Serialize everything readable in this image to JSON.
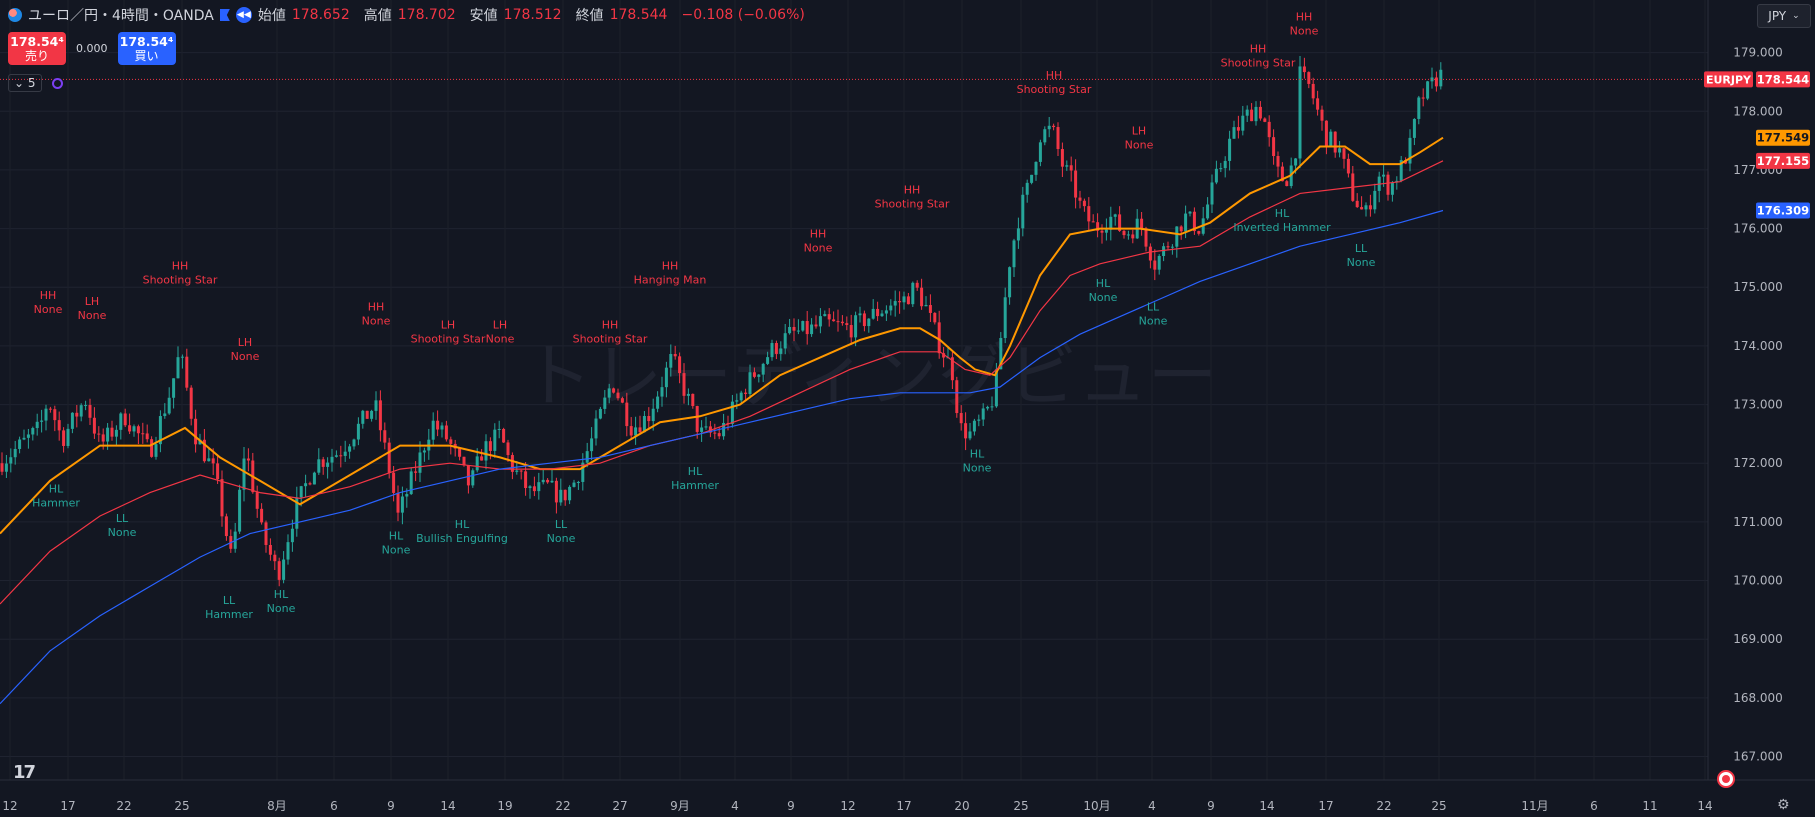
{
  "header": {
    "symbol_title": "ユーロ／円・4時間・OANDA",
    "open_label": "始値",
    "open": "178.652",
    "high_label": "高値",
    "high": "178.702",
    "low_label": "安値",
    "low": "178.512",
    "close_label": "終値",
    "close": "178.544",
    "change": "−0.108 (−0.06%)"
  },
  "trade": {
    "sell_price": "178.54⁴",
    "sell_label": "売り",
    "spread": "0.000",
    "buy_price": "178.54⁴",
    "buy_label": "買い"
  },
  "indicator_toggle": "5",
  "currency_selector": "JPY",
  "watermark": "トレーディングビュー",
  "colors": {
    "background": "#131722",
    "up": "#26a69a",
    "down": "#f23645",
    "ma_fast": "#ff9800",
    "ma_mid": "#f23645",
    "ma_slow": "#2962ff",
    "high_label": "#f23645",
    "low_label": "#26a69a"
  },
  "chart_data": {
    "type": "candlestick",
    "y_range": [
      166.6,
      179.3
    ],
    "y_ticks": [
      "179.000",
      "178.000",
      "177.000",
      "176.000",
      "175.000",
      "174.000",
      "173.000",
      "172.000",
      "171.000",
      "170.000",
      "169.000",
      "168.000",
      "167.000"
    ],
    "x_ticks": [
      "12",
      "17",
      "22",
      "25",
      "8月",
      "6",
      "9",
      "14",
      "19",
      "22",
      "27",
      "9月",
      "4",
      "9",
      "12",
      "17",
      "20",
      "25",
      "10月",
      "4",
      "9",
      "14",
      "17",
      "22",
      "25",
      "11月",
      "6",
      "11",
      "14"
    ],
    "price_anchors": [
      [
        0,
        172.0
      ],
      [
        40,
        172.6
      ],
      [
        48,
        173.1
      ],
      [
        62,
        172.4
      ],
      [
        85,
        173.1
      ],
      [
        100,
        172.3
      ],
      [
        125,
        172.8
      ],
      [
        150,
        172.2
      ],
      [
        170,
        173.2
      ],
      [
        180,
        173.9
      ],
      [
        195,
        172.5
      ],
      [
        215,
        171.8
      ],
      [
        232,
        170.3
      ],
      [
        245,
        172.3
      ],
      [
        262,
        170.8
      ],
      [
        278,
        170.1
      ],
      [
        295,
        171.2
      ],
      [
        315,
        172.0
      ],
      [
        340,
        172.2
      ],
      [
        375,
        173.0
      ],
      [
        388,
        172.0
      ],
      [
        398,
        171.1
      ],
      [
        418,
        172.0
      ],
      [
        432,
        172.7
      ],
      [
        448,
        172.4
      ],
      [
        470,
        171.6
      ],
      [
        482,
        172.2
      ],
      [
        500,
        172.5
      ],
      [
        510,
        172.0
      ],
      [
        530,
        171.5
      ],
      [
        548,
        171.6
      ],
      [
        562,
        171.4
      ],
      [
        575,
        171.7
      ],
      [
        592,
        172.4
      ],
      [
        612,
        173.4
      ],
      [
        632,
        172.6
      ],
      [
        648,
        172.8
      ],
      [
        672,
        173.8
      ],
      [
        690,
        173.0
      ],
      [
        700,
        172.5
      ],
      [
        720,
        172.5
      ],
      [
        745,
        173.3
      ],
      [
        770,
        173.9
      ],
      [
        790,
        174.2
      ],
      [
        815,
        174.3
      ],
      [
        820,
        174.4
      ],
      [
        850,
        174.3
      ],
      [
        880,
        174.6
      ],
      [
        905,
        174.8
      ],
      [
        915,
        175.0
      ],
      [
        925,
        174.7
      ],
      [
        940,
        174.0
      ],
      [
        952,
        173.6
      ],
      [
        960,
        172.6
      ],
      [
        970,
        172.5
      ],
      [
        985,
        172.8
      ],
      [
        995,
        173.2
      ],
      [
        1003,
        174.5
      ],
      [
        1010,
        175.5
      ],
      [
        1020,
        176.3
      ],
      [
        1030,
        176.8
      ],
      [
        1040,
        177.6
      ],
      [
        1052,
        177.7
      ],
      [
        1062,
        177.1
      ],
      [
        1072,
        176.8
      ],
      [
        1082,
        176.3
      ],
      [
        1095,
        176.0
      ],
      [
        1110,
        176.2
      ],
      [
        1125,
        175.9
      ],
      [
        1140,
        176.1
      ],
      [
        1155,
        175.4
      ],
      [
        1170,
        175.8
      ],
      [
        1185,
        176.2
      ],
      [
        1200,
        176.0
      ],
      [
        1215,
        176.8
      ],
      [
        1230,
        177.5
      ],
      [
        1245,
        177.9
      ],
      [
        1258,
        178.1
      ],
      [
        1265,
        177.8
      ],
      [
        1275,
        177.0
      ],
      [
        1285,
        176.8
      ],
      [
        1295,
        177.2
      ],
      [
        1300,
        178.6
      ],
      [
        1310,
        178.4
      ],
      [
        1325,
        177.6
      ],
      [
        1340,
        177.3
      ],
      [
        1352,
        176.6
      ],
      [
        1365,
        176.2
      ],
      [
        1378,
        176.9
      ],
      [
        1390,
        176.7
      ],
      [
        1400,
        177.0
      ],
      [
        1410,
        177.4
      ],
      [
        1420,
        178.2
      ],
      [
        1430,
        178.4
      ],
      [
        1440,
        178.65
      ],
      [
        1443,
        178.544
      ]
    ],
    "last_price": "178.544",
    "series": [
      {
        "name": "EMA fast",
        "color": "#ff9800",
        "points": [
          [
            0,
            170.8
          ],
          [
            50,
            171.7
          ],
          [
            100,
            172.3
          ],
          [
            150,
            172.3
          ],
          [
            185,
            172.6
          ],
          [
            220,
            172.1
          ],
          [
            260,
            171.7
          ],
          [
            300,
            171.3
          ],
          [
            330,
            171.6
          ],
          [
            360,
            171.9
          ],
          [
            400,
            172.3
          ],
          [
            450,
            172.3
          ],
          [
            500,
            172.1
          ],
          [
            540,
            171.9
          ],
          [
            580,
            171.9
          ],
          [
            620,
            172.3
          ],
          [
            660,
            172.7
          ],
          [
            700,
            172.8
          ],
          [
            740,
            173.0
          ],
          [
            780,
            173.5
          ],
          [
            820,
            173.8
          ],
          [
            860,
            174.1
          ],
          [
            900,
            174.3
          ],
          [
            920,
            174.3
          ],
          [
            940,
            174.1
          ],
          [
            960,
            173.8
          ],
          [
            975,
            173.6
          ],
          [
            995,
            173.5
          ],
          [
            1010,
            174.0
          ],
          [
            1040,
            175.2
          ],
          [
            1070,
            175.9
          ],
          [
            1100,
            176.0
          ],
          [
            1140,
            176.0
          ],
          [
            1180,
            175.9
          ],
          [
            1210,
            176.1
          ],
          [
            1250,
            176.6
          ],
          [
            1290,
            176.9
          ],
          [
            1320,
            177.4
          ],
          [
            1345,
            177.4
          ],
          [
            1370,
            177.1
          ],
          [
            1400,
            177.1
          ],
          [
            1420,
            177.3
          ],
          [
            1443,
            177.549
          ]
        ],
        "label": "177.549"
      },
      {
        "name": "SMA mid",
        "color": "#f23645",
        "points": [
          [
            0,
            169.6
          ],
          [
            50,
            170.5
          ],
          [
            100,
            171.1
          ],
          [
            150,
            171.5
          ],
          [
            200,
            171.8
          ],
          [
            260,
            171.5
          ],
          [
            300,
            171.4
          ],
          [
            350,
            171.6
          ],
          [
            400,
            171.9
          ],
          [
            450,
            172.0
          ],
          [
            500,
            171.9
          ],
          [
            550,
            171.9
          ],
          [
            600,
            172.0
          ],
          [
            650,
            172.3
          ],
          [
            700,
            172.5
          ],
          [
            750,
            172.8
          ],
          [
            800,
            173.2
          ],
          [
            850,
            173.6
          ],
          [
            900,
            173.9
          ],
          [
            940,
            173.9
          ],
          [
            965,
            173.6
          ],
          [
            990,
            173.5
          ],
          [
            1010,
            173.8
          ],
          [
            1040,
            174.6
          ],
          [
            1070,
            175.2
          ],
          [
            1100,
            175.4
          ],
          [
            1150,
            175.6
          ],
          [
            1200,
            175.7
          ],
          [
            1250,
            176.2
          ],
          [
            1300,
            176.6
          ],
          [
            1350,
            176.7
          ],
          [
            1400,
            176.8
          ],
          [
            1443,
            177.155
          ]
        ],
        "label": "177.155"
      },
      {
        "name": "SMA slow",
        "color": "#2962ff",
        "points": [
          [
            0,
            167.9
          ],
          [
            50,
            168.8
          ],
          [
            100,
            169.4
          ],
          [
            150,
            169.9
          ],
          [
            200,
            170.4
          ],
          [
            250,
            170.8
          ],
          [
            300,
            171.0
          ],
          [
            350,
            171.2
          ],
          [
            400,
            171.5
          ],
          [
            450,
            171.7
          ],
          [
            500,
            171.9
          ],
          [
            550,
            172.0
          ],
          [
            600,
            172.1
          ],
          [
            650,
            172.3
          ],
          [
            700,
            172.5
          ],
          [
            750,
            172.7
          ],
          [
            800,
            172.9
          ],
          [
            850,
            173.1
          ],
          [
            900,
            173.2
          ],
          [
            940,
            173.2
          ],
          [
            970,
            173.2
          ],
          [
            1000,
            173.3
          ],
          [
            1040,
            173.8
          ],
          [
            1080,
            174.2
          ],
          [
            1120,
            174.5
          ],
          [
            1160,
            174.8
          ],
          [
            1200,
            175.1
          ],
          [
            1250,
            175.4
          ],
          [
            1300,
            175.7
          ],
          [
            1350,
            175.9
          ],
          [
            1400,
            176.1
          ],
          [
            1443,
            176.309
          ]
        ],
        "label": "176.309"
      }
    ],
    "symbol_tag": "EURJPY",
    "annotations": [
      {
        "x": 48,
        "y": 174.8,
        "text": [
          "HH",
          "None"
        ],
        "kind": "high"
      },
      {
        "x": 92,
        "y": 174.7,
        "text": [
          "LH",
          "None"
        ],
        "kind": "high"
      },
      {
        "x": 180,
        "y": 175.3,
        "text": [
          "HH",
          "Shooting Star"
        ],
        "kind": "high"
      },
      {
        "x": 245,
        "y": 174.0,
        "text": [
          "LH",
          "None"
        ],
        "kind": "high"
      },
      {
        "x": 376,
        "y": 174.6,
        "text": [
          "HH",
          "None"
        ],
        "kind": "high"
      },
      {
        "x": 448,
        "y": 174.3,
        "text": [
          "LH",
          "Shooting Star"
        ],
        "kind": "high"
      },
      {
        "x": 500,
        "y": 174.3,
        "text": [
          "LH",
          "None"
        ],
        "kind": "high"
      },
      {
        "x": 610,
        "y": 174.3,
        "text": [
          "HH",
          "Shooting Star"
        ],
        "kind": "high"
      },
      {
        "x": 670,
        "y": 175.3,
        "text": [
          "HH",
          "Hanging Man"
        ],
        "kind": "high"
      },
      {
        "x": 818,
        "y": 175.85,
        "text": [
          "HH",
          "None"
        ],
        "kind": "high"
      },
      {
        "x": 912,
        "y": 176.6,
        "text": [
          "HH",
          "Shooting Star"
        ],
        "kind": "high"
      },
      {
        "x": 1054,
        "y": 178.55,
        "text": [
          "HH",
          "Shooting Star"
        ],
        "kind": "high"
      },
      {
        "x": 1139,
        "y": 177.6,
        "text": [
          "LH",
          "None"
        ],
        "kind": "high"
      },
      {
        "x": 1258,
        "y": 179.0,
        "text": [
          "HH",
          "Shooting Star"
        ],
        "kind": "high"
      },
      {
        "x": 1304,
        "y": 179.55,
        "text": [
          "HH",
          "None"
        ],
        "kind": "high"
      },
      {
        "x": 56,
        "y": 171.5,
        "text": [
          "HL",
          "Hammer"
        ],
        "kind": "low"
      },
      {
        "x": 122,
        "y": 171.0,
        "text": [
          "LL",
          "None"
        ],
        "kind": "low"
      },
      {
        "x": 229,
        "y": 169.6,
        "text": [
          "LL",
          "Hammer"
        ],
        "kind": "low"
      },
      {
        "x": 281,
        "y": 169.7,
        "text": [
          "HL",
          "None"
        ],
        "kind": "low"
      },
      {
        "x": 396,
        "y": 170.7,
        "text": [
          "HL",
          "None"
        ],
        "kind": "low"
      },
      {
        "x": 462,
        "y": 170.9,
        "text": [
          "HL",
          "Bullish Engulfing"
        ],
        "kind": "low"
      },
      {
        "x": 561,
        "y": 170.9,
        "text": [
          "LL",
          "None"
        ],
        "kind": "low"
      },
      {
        "x": 695,
        "y": 171.8,
        "text": [
          "HL",
          "Hammer"
        ],
        "kind": "low"
      },
      {
        "x": 977,
        "y": 172.1,
        "text": [
          "HL",
          "None"
        ],
        "kind": "low"
      },
      {
        "x": 1103,
        "y": 175.0,
        "text": [
          "HL",
          "None"
        ],
        "kind": "low"
      },
      {
        "x": 1153,
        "y": 174.6,
        "text": [
          "LL",
          "None"
        ],
        "kind": "low"
      },
      {
        "x": 1282,
        "y": 176.2,
        "text": [
          "HL",
          "Inverted Hammer"
        ],
        "kind": "low"
      },
      {
        "x": 1361,
        "y": 175.6,
        "text": [
          "LL",
          "None"
        ],
        "kind": "low"
      }
    ]
  }
}
